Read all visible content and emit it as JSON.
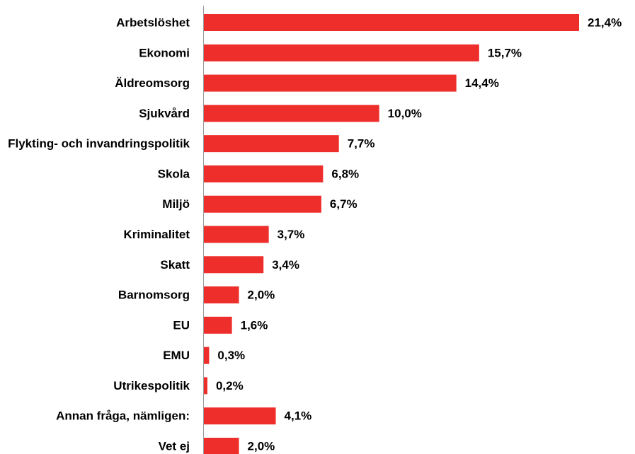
{
  "chart_data": {
    "type": "bar",
    "orientation": "horizontal",
    "color": "#ee2e2b",
    "categories": [
      "Arbetslöshet",
      "Ekonomi",
      "Äldreomsorg",
      "Sjukvård",
      "Flykting- och invandringspolitik",
      "Skola",
      "Miljö",
      "Kriminalitet",
      "Skatt",
      "Barnomsorg",
      "EU",
      "EMU",
      "Utrikespolitik",
      "Annan fråga, nämligen:",
      "Vet ej"
    ],
    "values": [
      21.4,
      15.7,
      14.4,
      10.0,
      7.7,
      6.8,
      6.7,
      3.7,
      3.4,
      2.0,
      1.6,
      0.3,
      0.2,
      4.1,
      2.0
    ],
    "value_labels": [
      "21,4%",
      "15,7%",
      "14,4%",
      "10,0%",
      "7,7%",
      "6,8%",
      "6,7%",
      "3,7%",
      "3,4%",
      "2,0%",
      "1,6%",
      "0,3%",
      "0,2%",
      "4,1%",
      "2,0%"
    ]
  }
}
